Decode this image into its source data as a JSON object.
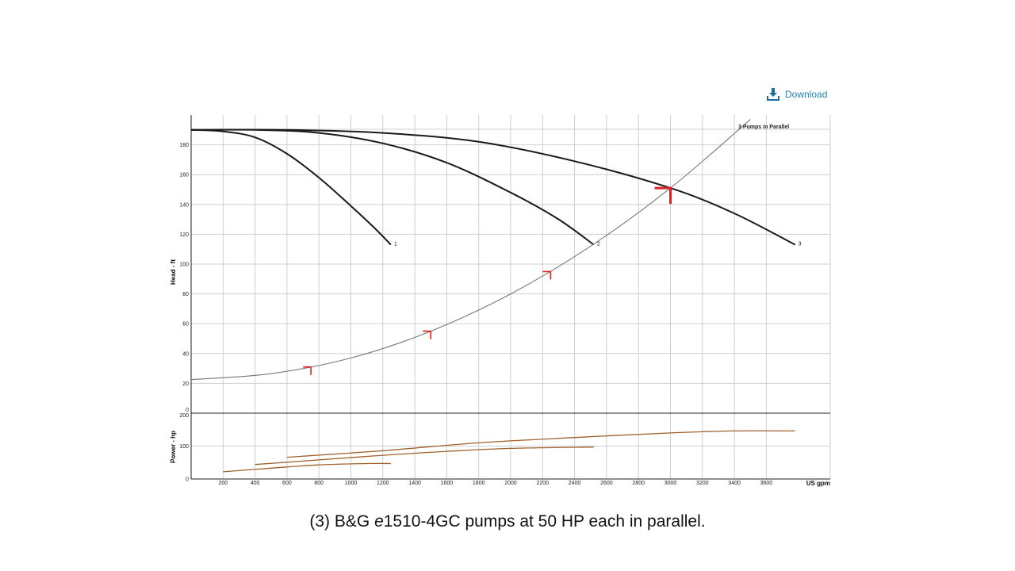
{
  "download": {
    "label": "Download",
    "icon": "download-icon",
    "color": "#1a86b8"
  },
  "caption": {
    "prefix": "(3) B&G ",
    "italic": "e",
    "suffix": "1510-4GC pumps at 50 HP each in parallel."
  },
  "chart_data": {
    "type": "line",
    "head_panel": {
      "ylabel": "Head - ft",
      "ylim": [
        0,
        200
      ],
      "yticks": [
        0,
        20,
        40,
        60,
        80,
        100,
        120,
        140,
        160,
        180
      ],
      "grid": true,
      "series": [
        {
          "name": "1",
          "x": [
            0,
            200,
            400,
            600,
            800,
            1000,
            1150,
            1250
          ],
          "y": [
            190,
            189,
            185,
            174,
            158,
            139,
            124,
            113
          ]
        },
        {
          "name": "2",
          "x": [
            0,
            400,
            800,
            1200,
            1600,
            2000,
            2300,
            2520
          ],
          "y": [
            190,
            190,
            188,
            181,
            168,
            148,
            130,
            113
          ]
        },
        {
          "name": "3",
          "x": [
            0,
            600,
            1200,
            1800,
            2400,
            3000,
            3400,
            3780
          ],
          "y": [
            190,
            190,
            188,
            182,
            169,
            151,
            134,
            113
          ]
        }
      ],
      "system_curve": {
        "name": "3 Pumps in Parallel",
        "x": [
          0,
          500,
          1000,
          1500,
          2000,
          2500,
          3000,
          3500
        ],
        "y": [
          22.5,
          26.5,
          37,
          55,
          80,
          112,
          151,
          197
        ]
      },
      "markers": [
        {
          "x": 750,
          "y": 31
        },
        {
          "x": 1500,
          "y": 55
        },
        {
          "x": 2250,
          "y": 95
        },
        {
          "x": 3000,
          "y": 151
        }
      ],
      "marker_color": "#e02020"
    },
    "power_panel": {
      "ylabel": "Power - hp",
      "ylim": [
        0,
        200
      ],
      "yticks": [
        0,
        100,
        200
      ],
      "grid": true,
      "series": [
        {
          "name": "1",
          "x": [
            200,
            500,
            800,
            1100,
            1250
          ],
          "y": [
            22,
            33,
            43,
            47,
            47
          ]
        },
        {
          "name": "2",
          "x": [
            400,
            800,
            1200,
            1600,
            2000,
            2520
          ],
          "y": [
            44,
            58,
            72,
            84,
            93,
            97
          ]
        },
        {
          "name": "3",
          "x": [
            600,
            1200,
            1800,
            2400,
            3000,
            3400,
            3780
          ],
          "y": [
            66,
            86,
            110,
            126,
            140,
            146,
            146
          ]
        }
      ],
      "color": "#a0602c"
    },
    "x_axis": {
      "xlabel": "US gpm",
      "xlim": [
        0,
        4000
      ],
      "xticks": [
        200,
        400,
        600,
        800,
        1000,
        1200,
        1400,
        1600,
        1800,
        2000,
        2200,
        2400,
        2600,
        2800,
        3000,
        3200,
        3400,
        3600
      ]
    }
  }
}
